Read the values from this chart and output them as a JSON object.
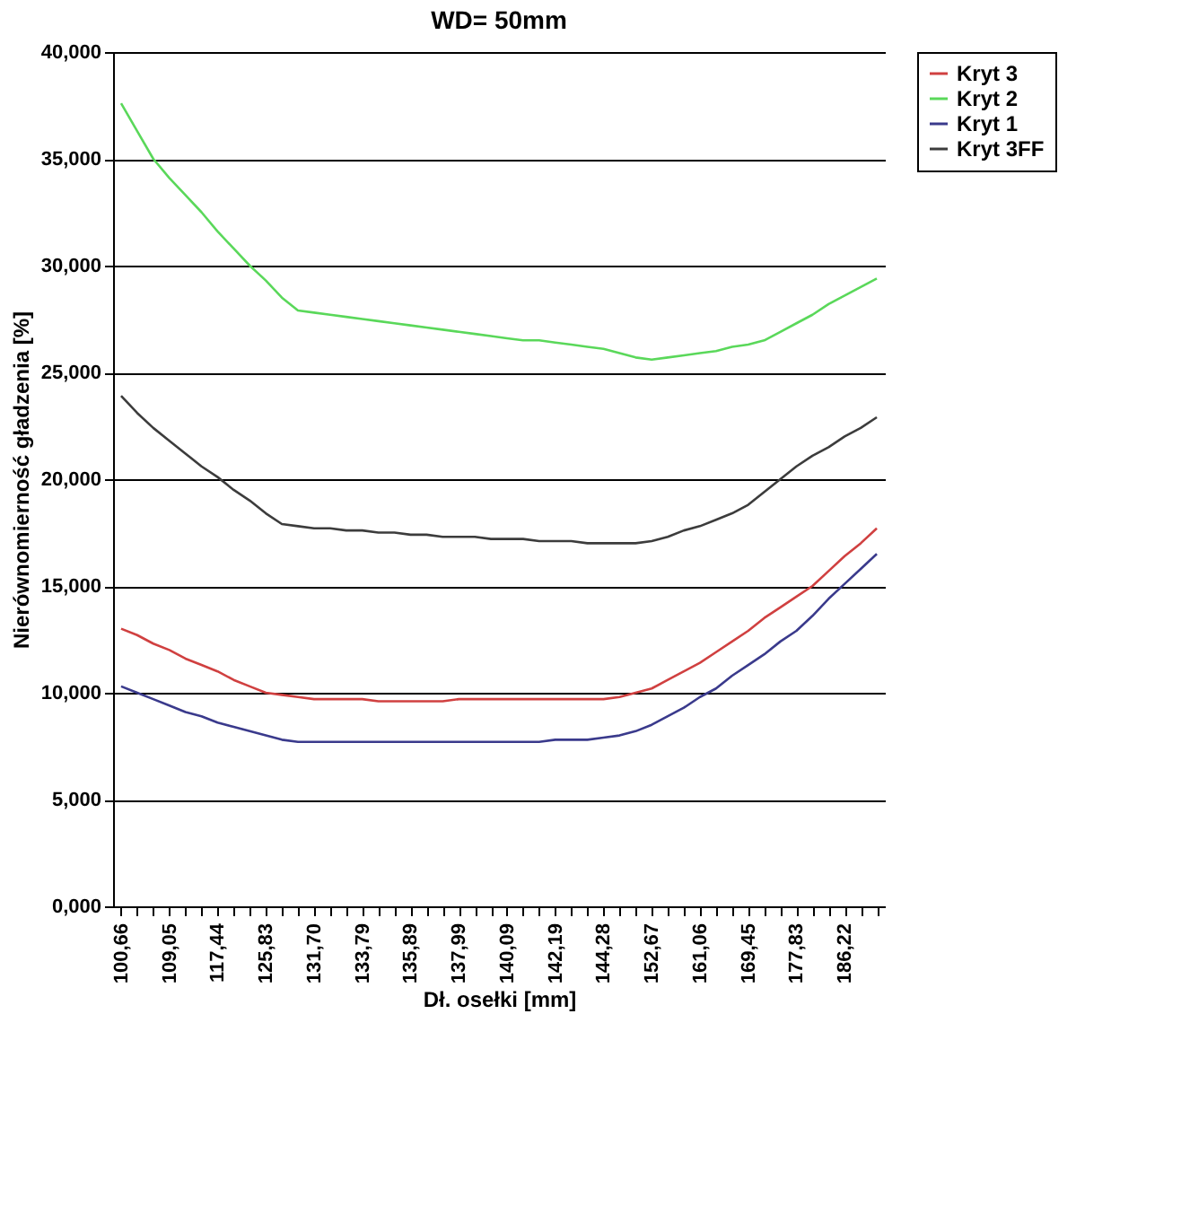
{
  "chart_data": {
    "type": "line",
    "title": "WD= 50mm",
    "xlabel": "Dł. osełki [mm]",
    "ylabel": "Nierównomierność gładzenia [%]",
    "categories": [
      "100,66",
      null,
      null,
      "109,05",
      null,
      null,
      "117,44",
      null,
      null,
      "125,83",
      null,
      null,
      "131,70",
      null,
      null,
      "133,79",
      null,
      null,
      "135,89",
      null,
      null,
      "137,99",
      null,
      null,
      "140,09",
      null,
      null,
      "142,19",
      null,
      null,
      "144,28",
      null,
      null,
      "152,67",
      null,
      null,
      "161,06",
      null,
      null,
      "169,45",
      null,
      null,
      "177,83",
      null,
      null,
      "186,22",
      null,
      null
    ],
    "series": [
      {
        "name": "Kryt 3",
        "color": "#d04040",
        "values": [
          13.0,
          12.7,
          12.3,
          12.0,
          11.6,
          11.3,
          11.0,
          10.6,
          10.3,
          10.0,
          9.9,
          9.8,
          9.7,
          9.7,
          9.7,
          9.7,
          9.6,
          9.6,
          9.6,
          9.6,
          9.6,
          9.7,
          9.7,
          9.7,
          9.7,
          9.7,
          9.7,
          9.7,
          9.7,
          9.7,
          9.7,
          9.8,
          10.0,
          10.2,
          10.6,
          11.0,
          11.4,
          11.9,
          12.4,
          12.9,
          13.5,
          14.0,
          14.5,
          15.0,
          15.7,
          16.4,
          17.0,
          17.7
        ]
      },
      {
        "name": "Kryt 2",
        "color": "#5ad85a",
        "values": [
          37.6,
          36.3,
          35.0,
          34.1,
          33.3,
          32.5,
          31.6,
          30.8,
          30.0,
          29.3,
          28.5,
          27.9,
          27.8,
          27.7,
          27.6,
          27.5,
          27.4,
          27.3,
          27.2,
          27.1,
          27.0,
          26.9,
          26.8,
          26.7,
          26.6,
          26.5,
          26.5,
          26.4,
          26.3,
          26.2,
          26.1,
          25.9,
          25.7,
          25.6,
          25.7,
          25.8,
          25.9,
          26.0,
          26.2,
          26.3,
          26.5,
          26.9,
          27.3,
          27.7,
          28.2,
          28.6,
          29.0,
          29.4
        ]
      },
      {
        "name": "Kryt 1",
        "color": "#3a3a8c",
        "values": [
          10.3,
          10.0,
          9.7,
          9.4,
          9.1,
          8.9,
          8.6,
          8.4,
          8.2,
          8.0,
          7.8,
          7.7,
          7.7,
          7.7,
          7.7,
          7.7,
          7.7,
          7.7,
          7.7,
          7.7,
          7.7,
          7.7,
          7.7,
          7.7,
          7.7,
          7.7,
          7.7,
          7.8,
          7.8,
          7.8,
          7.9,
          8.0,
          8.2,
          8.5,
          8.9,
          9.3,
          9.8,
          10.2,
          10.8,
          11.3,
          11.8,
          12.4,
          12.9,
          13.6,
          14.4,
          15.1,
          15.8,
          16.5
        ]
      },
      {
        "name": "Kryt 3FF",
        "color": "#3c3c3c",
        "values": [
          23.9,
          23.1,
          22.4,
          21.8,
          21.2,
          20.6,
          20.1,
          19.5,
          19.0,
          18.4,
          17.9,
          17.8,
          17.7,
          17.7,
          17.6,
          17.6,
          17.5,
          17.5,
          17.4,
          17.4,
          17.3,
          17.3,
          17.3,
          17.2,
          17.2,
          17.2,
          17.1,
          17.1,
          17.1,
          17.0,
          17.0,
          17.0,
          17.0,
          17.1,
          17.3,
          17.6,
          17.8,
          18.1,
          18.4,
          18.8,
          19.4,
          20.0,
          20.6,
          21.1,
          21.5,
          22.0,
          22.4,
          22.9
        ]
      }
    ],
    "ylim": [
      0,
      40
    ],
    "yticks": [
      {
        "value": 0,
        "label": "0,000"
      },
      {
        "value": 5,
        "label": "5,000"
      },
      {
        "value": 10,
        "label": "10,000"
      },
      {
        "value": 15,
        "label": "15,000"
      },
      {
        "value": 20,
        "label": "20,000"
      },
      {
        "value": 25,
        "label": "25,000"
      },
      {
        "value": 30,
        "label": "30,000"
      },
      {
        "value": 35,
        "label": "35,000"
      },
      {
        "value": 40,
        "label": "40,000"
      }
    ],
    "grid": "y",
    "legend": "right",
    "marker": "none",
    "line_style": "solid"
  }
}
